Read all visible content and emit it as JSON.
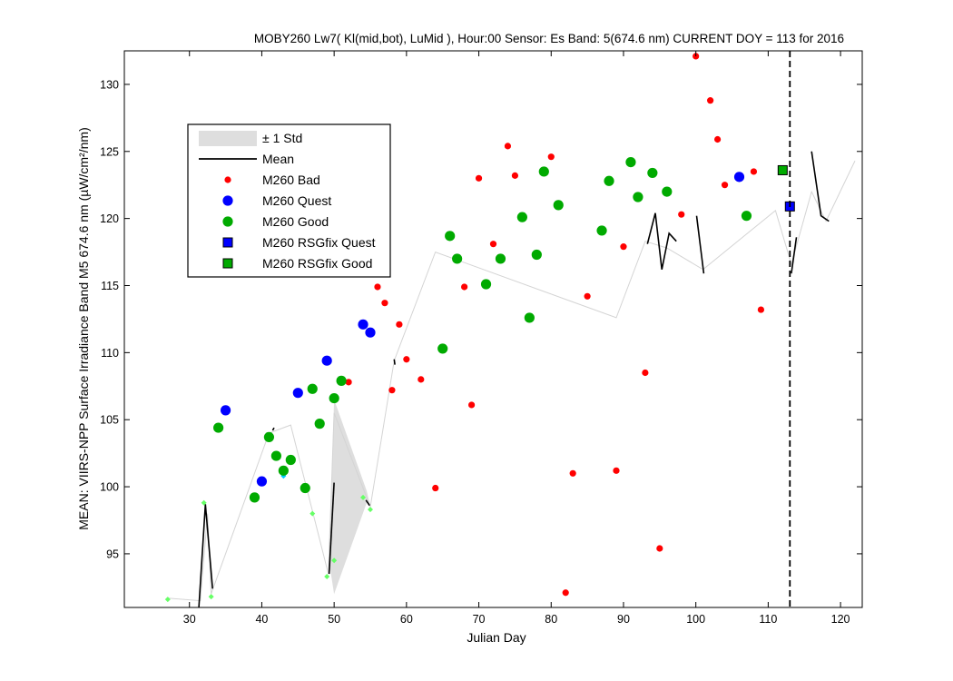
{
  "chart_data": {
    "type": "scatter",
    "title": "MOBY260   Lw7( Kl(mid,bot), LuMid ),   Hour:00 Sensor: Es Band: 5(674.6 nm)   CURRENT DOY = 113 for 2016",
    "xlabel": "Julian Day",
    "ylabel": "MEAN: VIIRS-NPP Surface Irradiance Band M5 674.6 nm (µW/cm²/nm)",
    "xlim": [
      21,
      123
    ],
    "ylim": [
      91,
      132.5
    ],
    "x_ticks": [
      30,
      40,
      50,
      60,
      70,
      80,
      90,
      100,
      110,
      120
    ],
    "y_ticks": [
      95,
      100,
      105,
      110,
      115,
      120,
      125,
      130
    ],
    "current_doy": 113,
    "legend": {
      "placement": "upper-left",
      "entries": [
        {
          "label": "± 1 Std",
          "kind": "std",
          "color": "#dedede"
        },
        {
          "label": "Mean",
          "kind": "line",
          "color": "#000000"
        },
        {
          "label": "M260 Bad",
          "kind": "dot",
          "color": "#ff0000"
        },
        {
          "label": "M260 Quest",
          "kind": "circle",
          "color": "#0000ff"
        },
        {
          "label": "M260 Good",
          "kind": "circle",
          "color": "#00aa00"
        },
        {
          "label": "M260 RSGfix Quest",
          "kind": "square",
          "color": "#0000ff"
        },
        {
          "label": "M260 RSGfix Good",
          "kind": "square",
          "color": "#00aa00"
        }
      ]
    },
    "std_band": [
      {
        "x": 49.3,
        "y": 94.4
      },
      {
        "x": 50,
        "y": 106.5
      },
      {
        "x": 54.5,
        "y": 99.7
      },
      {
        "x": 55,
        "y": 98.6
      },
      {
        "x": 54.5,
        "y": 98.8
      },
      {
        "x": 50,
        "y": 92.0
      }
    ],
    "faint_line": [
      {
        "x": 27,
        "y": 91.7
      },
      {
        "x": 31.5,
        "y": 91.5
      },
      {
        "x": 32.5,
        "y": 98.0
      },
      {
        "x": 33,
        "y": 92.0
      },
      {
        "x": 41,
        "y": 104.0
      },
      {
        "x": 44,
        "y": 104.6
      },
      {
        "x": 49.2,
        "y": 93.5
      },
      {
        "x": 50,
        "y": 105.5
      },
      {
        "x": 55,
        "y": 98.5
      },
      {
        "x": 58.3,
        "y": 109.4
      },
      {
        "x": 64,
        "y": 117.5
      },
      {
        "x": 89,
        "y": 112.6
      },
      {
        "x": 93,
        "y": 118.3
      },
      {
        "x": 96,
        "y": 117.8
      },
      {
        "x": 101,
        "y": 116.2
      },
      {
        "x": 111,
        "y": 120.6
      },
      {
        "x": 113.2,
        "y": 116.6
      },
      {
        "x": 116,
        "y": 122.0
      },
      {
        "x": 118,
        "y": 119.8
      },
      {
        "x": 122,
        "y": 124.3
      }
    ],
    "mean_segments": [
      [
        {
          "x": 31.3,
          "y": 91.0
        },
        {
          "x": 32.2,
          "y": 98.7
        },
        {
          "x": 33.2,
          "y": 92.4
        }
      ],
      [
        {
          "x": 41.5,
          "y": 104.2
        },
        {
          "x": 41.7,
          "y": 104.4
        }
      ],
      [
        {
          "x": 49.3,
          "y": 93.5
        },
        {
          "x": 50.0,
          "y": 100.3
        }
      ],
      [
        {
          "x": 54.4,
          "y": 99.0
        },
        {
          "x": 54.9,
          "y": 98.6
        }
      ],
      [
        {
          "x": 58.3,
          "y": 109.5
        },
        {
          "x": 58.4,
          "y": 109.1
        }
      ],
      [
        {
          "x": 93.3,
          "y": 118.1
        },
        {
          "x": 94.4,
          "y": 120.4
        },
        {
          "x": 95.3,
          "y": 116.2
        },
        {
          "x": 96.3,
          "y": 118.9
        },
        {
          "x": 97.3,
          "y": 118.3
        }
      ],
      [
        {
          "x": 100.1,
          "y": 120.2
        },
        {
          "x": 101.1,
          "y": 115.9
        }
      ],
      [
        {
          "x": 113.2,
          "y": 115.9
        },
        {
          "x": 113.9,
          "y": 118.6
        }
      ],
      [
        {
          "x": 116.0,
          "y": 125.0
        },
        {
          "x": 117.3,
          "y": 120.2
        },
        {
          "x": 118.4,
          "y": 119.8
        }
      ]
    ],
    "std_points": [
      {
        "x": 27,
        "y": 91.6,
        "color": "#66ff66"
      },
      {
        "x": 32,
        "y": 98.8,
        "color": "#66ff66"
      },
      {
        "x": 33,
        "y": 91.8,
        "color": "#66ff66"
      },
      {
        "x": 43,
        "y": 100.8,
        "color": "#00ccff"
      },
      {
        "x": 47,
        "y": 98.0,
        "color": "#66ff66"
      },
      {
        "x": 49,
        "y": 93.3,
        "color": "#66ff66"
      },
      {
        "x": 50,
        "y": 94.5,
        "color": "#66ff66"
      },
      {
        "x": 54,
        "y": 99.2,
        "color": "#66ff66"
      },
      {
        "x": 55,
        "y": 98.3,
        "color": "#66ff66"
      }
    ],
    "series": [
      {
        "name": "M260 Bad",
        "marker": "dot",
        "color": "#ff0000",
        "points": [
          {
            "x": 52,
            "y": 107.8
          },
          {
            "x": 56,
            "y": 114.9
          },
          {
            "x": 57,
            "y": 113.7
          },
          {
            "x": 58,
            "y": 107.2
          },
          {
            "x": 59,
            "y": 112.1
          },
          {
            "x": 60,
            "y": 109.5
          },
          {
            "x": 62,
            "y": 108.0
          },
          {
            "x": 64,
            "y": 99.9
          },
          {
            "x": 68,
            "y": 114.9
          },
          {
            "x": 69,
            "y": 106.1
          },
          {
            "x": 70,
            "y": 123.0
          },
          {
            "x": 72,
            "y": 118.1
          },
          {
            "x": 74,
            "y": 125.4
          },
          {
            "x": 75,
            "y": 123.2
          },
          {
            "x": 80,
            "y": 124.6
          },
          {
            "x": 82,
            "y": 92.1
          },
          {
            "x": 83,
            "y": 101.0
          },
          {
            "x": 85,
            "y": 114.2
          },
          {
            "x": 89,
            "y": 101.2
          },
          {
            "x": 90,
            "y": 117.9
          },
          {
            "x": 93,
            "y": 108.5
          },
          {
            "x": 95,
            "y": 95.4
          },
          {
            "x": 98,
            "y": 120.3
          },
          {
            "x": 100,
            "y": 132.1
          },
          {
            "x": 102,
            "y": 128.8
          },
          {
            "x": 103,
            "y": 125.9
          },
          {
            "x": 104,
            "y": 122.5
          },
          {
            "x": 108,
            "y": 123.5
          },
          {
            "x": 109,
            "y": 113.2
          }
        ]
      },
      {
        "name": "M260 Quest",
        "marker": "circle",
        "color": "#0000ff",
        "points": [
          {
            "x": 35,
            "y": 105.7
          },
          {
            "x": 40,
            "y": 100.4
          },
          {
            "x": 45,
            "y": 107.0
          },
          {
            "x": 49,
            "y": 109.4
          },
          {
            "x": 54,
            "y": 112.1
          },
          {
            "x": 55,
            "y": 111.5
          },
          {
            "x": 106,
            "y": 123.1
          }
        ]
      },
      {
        "name": "M260 Good",
        "marker": "circle",
        "color": "#00aa00",
        "points": [
          {
            "x": 34,
            "y": 104.4
          },
          {
            "x": 39,
            "y": 99.2
          },
          {
            "x": 41,
            "y": 103.7
          },
          {
            "x": 42,
            "y": 102.3
          },
          {
            "x": 43,
            "y": 101.2
          },
          {
            "x": 44,
            "y": 102.0
          },
          {
            "x": 46,
            "y": 99.9
          },
          {
            "x": 47,
            "y": 107.3
          },
          {
            "x": 48,
            "y": 104.7
          },
          {
            "x": 50,
            "y": 106.6
          },
          {
            "x": 51,
            "y": 107.9
          },
          {
            "x": 65,
            "y": 110.3
          },
          {
            "x": 66,
            "y": 118.7
          },
          {
            "x": 67,
            "y": 117.0
          },
          {
            "x": 71,
            "y": 115.1
          },
          {
            "x": 73,
            "y": 117.0
          },
          {
            "x": 76,
            "y": 120.1
          },
          {
            "x": 77,
            "y": 112.6
          },
          {
            "x": 78,
            "y": 117.3
          },
          {
            "x": 79,
            "y": 123.5
          },
          {
            "x": 81,
            "y": 121.0
          },
          {
            "x": 87,
            "y": 119.1
          },
          {
            "x": 88,
            "y": 122.8
          },
          {
            "x": 91,
            "y": 124.2
          },
          {
            "x": 92,
            "y": 121.6
          },
          {
            "x": 94,
            "y": 123.4
          },
          {
            "x": 96,
            "y": 122.0
          },
          {
            "x": 107,
            "y": 120.2
          }
        ]
      },
      {
        "name": "M260 RSGfix Quest",
        "marker": "square",
        "color": "#0000ff",
        "points": [
          {
            "x": 113,
            "y": 120.9
          }
        ]
      },
      {
        "name": "M260 RSGfix Good",
        "marker": "square",
        "color": "#00aa00",
        "points": [
          {
            "x": 112,
            "y": 123.6
          }
        ]
      }
    ]
  }
}
